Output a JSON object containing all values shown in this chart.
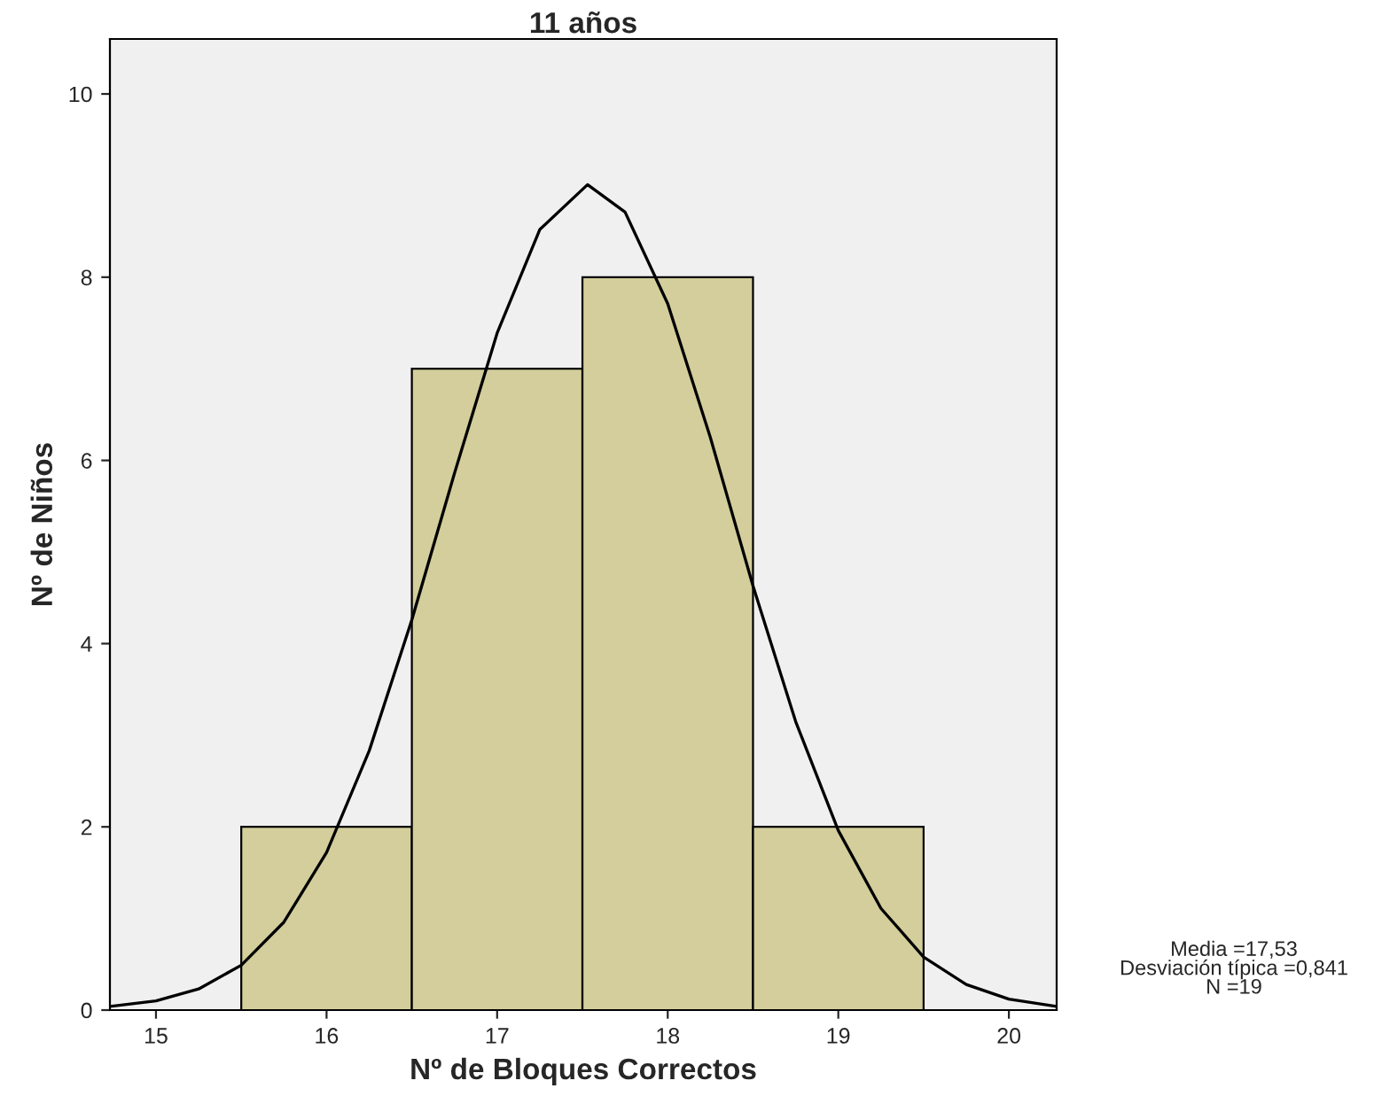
{
  "chart_data": {
    "type": "histogram",
    "title": "11 años",
    "xlabel": "Nº de Bloques Correctos",
    "ylabel": "Nº de Niños",
    "bins": [
      15.5,
      16.5,
      17.5,
      18.5,
      19.5
    ],
    "values": [
      2,
      7,
      8,
      2
    ],
    "color": "#d3ce9b",
    "series": [
      {
        "type": "line",
        "color": "#000000",
        "x": [
          14.73,
          15.0,
          15.25,
          15.5,
          15.75,
          16.0,
          16.25,
          16.5,
          16.75,
          17.0,
          17.25,
          17.53,
          17.75,
          18.0,
          18.25,
          18.5,
          18.75,
          19.0,
          19.25,
          19.5,
          19.75,
          20.0,
          20.28
        ],
        "values": [
          0.04,
          0.1,
          0.23,
          0.49,
          0.96,
          1.72,
          2.83,
          4.26,
          5.86,
          7.39,
          8.52,
          9.01,
          8.71,
          7.71,
          6.25,
          4.63,
          3.15,
          1.96,
          1.11,
          0.58,
          0.28,
          0.12,
          0.04
        ]
      }
    ],
    "xlim": [
      14.73,
      20.28
    ],
    "ylim": [
      0,
      10.6
    ],
    "xticks": [
      15,
      16,
      17,
      18,
      19,
      20
    ],
    "yticks": [
      0,
      2,
      4,
      6,
      8,
      10
    ],
    "annotations": [
      "Media =17,53\nDesviación típica =0,841\nN =19"
    ]
  }
}
